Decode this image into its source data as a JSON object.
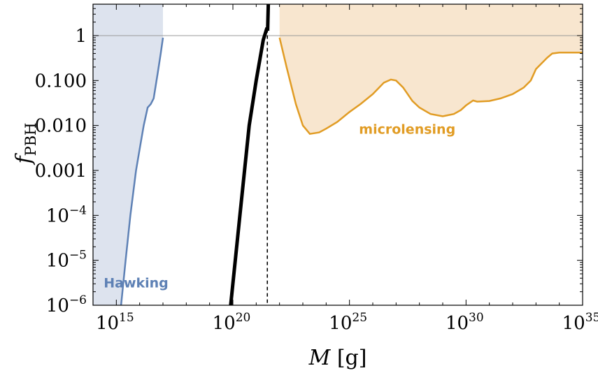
{
  "chart_data": {
    "type": "line",
    "xlabel": {
      "italic": "M",
      "rest": " [g]"
    },
    "ylabel": {
      "italic": "f",
      "sub": "PBH"
    },
    "xscale": "log",
    "yscale": "log",
    "xlim": [
      100000000000000.0,
      1e+35
    ],
    "ylim": [
      1e-06,
      5
    ],
    "x_ticks": [
      {
        "value": 1000000000000000.0,
        "base": "10",
        "exp": "15"
      },
      {
        "value": 1e+20,
        "base": "10",
        "exp": "20"
      },
      {
        "value": 1e+25,
        "base": "10",
        "exp": "25"
      },
      {
        "value": 1e+30,
        "base": "10",
        "exp": "30"
      },
      {
        "value": 1e+35,
        "base": "10",
        "exp": "35"
      }
    ],
    "y_ticks": [
      {
        "value": 1e-06,
        "base": "10",
        "exp": "−6"
      },
      {
        "value": 1e-05,
        "base": "10",
        "exp": "−5"
      },
      {
        "value": 0.0001,
        "base": "10",
        "exp": "−4"
      },
      {
        "value": 0.001,
        "text": "0.001"
      },
      {
        "value": 0.01,
        "text": "0.010"
      },
      {
        "value": 0.1,
        "text": "0.100"
      },
      {
        "value": 1,
        "text": "1"
      }
    ],
    "reference_lines": [
      {
        "orientation": "horizontal",
        "value": 1,
        "color": "#999999",
        "style": "solid"
      },
      {
        "orientation": "vertical",
        "value": 3e+21,
        "color": "#000000",
        "style": "dashed"
      }
    ],
    "colors": {
      "hawking_line": "#5e81b5",
      "hawking_fill": "#dde3ee",
      "microlensing_line": "#e19c24",
      "microlensing_fill": "#f8e6cf",
      "spectrum_line": "#000000"
    },
    "series": [
      {
        "name": "Hawking",
        "role": "constraint",
        "fill": "left",
        "points": [
          [
            1600000000000000.0,
            1e-06
          ],
          [
            2500000000000000.0,
            1e-05
          ],
          [
            4000000000000000.0,
            0.0001
          ],
          [
            7000000000000000.0,
            0.001
          ],
          [
            1e+16,
            0.003
          ],
          [
            1.5e+16,
            0.01
          ],
          [
            2.2e+16,
            0.025
          ],
          [
            3e+16,
            0.03
          ],
          [
            4e+16,
            0.04
          ],
          [
            6e+16,
            0.15
          ],
          [
            8e+16,
            0.4
          ],
          [
            1e+17,
            0.9
          ]
        ]
      },
      {
        "name": "microlensing",
        "role": "constraint",
        "fill": "above",
        "points": [
          [
            1e+22,
            0.9
          ],
          [
            2e+22,
            0.2
          ],
          [
            5e+22,
            0.03
          ],
          [
            1e+23,
            0.01
          ],
          [
            2e+23,
            0.0065
          ],
          [
            5e+23,
            0.007
          ],
          [
            1e+24,
            0.0085
          ],
          [
            3e+24,
            0.012
          ],
          [
            1e+25,
            0.02
          ],
          [
            3e+25,
            0.03
          ],
          [
            1e+26,
            0.05
          ],
          [
            3e+26,
            0.09
          ],
          [
            6e+26,
            0.105
          ],
          [
            1e+27,
            0.1
          ],
          [
            2e+27,
            0.07
          ],
          [
            5e+27,
            0.035
          ],
          [
            1e+28,
            0.025
          ],
          [
            3e+28,
            0.018
          ],
          [
            1e+29,
            0.016
          ],
          [
            3e+29,
            0.018
          ],
          [
            6e+29,
            0.022
          ],
          [
            1e+30,
            0.028
          ],
          [
            2e+30,
            0.036
          ],
          [
            3e+30,
            0.034
          ],
          [
            1e+31,
            0.035
          ],
          [
            3e+31,
            0.04
          ],
          [
            1e+32,
            0.05
          ],
          [
            3e+32,
            0.07
          ],
          [
            6e+32,
            0.1
          ],
          [
            1e+33,
            0.18
          ],
          [
            3e+33,
            0.32
          ],
          [
            5e+33,
            0.4
          ],
          [
            1e+34,
            0.42
          ],
          [
            1e+35,
            0.42
          ]
        ]
      },
      {
        "name": "",
        "role": "spectrum",
        "points": [
          [
            8e+19,
            1e-06
          ],
          [
            2e+20,
            0.0001
          ],
          [
            5e+20,
            0.01
          ],
          [
            1e+21,
            0.1
          ],
          [
            2e+21,
            0.8
          ],
          [
            2.8e+21,
            1.4
          ],
          [
            3.1e+21,
            1.4
          ],
          [
            3.3e+21,
            5
          ]
        ]
      }
    ],
    "annotations": [
      {
        "text": "Hawking",
        "x": 7000000000000000.0,
        "y": 2.5e-06,
        "color": "#5e81b5"
      },
      {
        "text": "microlensing",
        "x": 3e+27,
        "y": 0.0065,
        "color": "#e19c24"
      }
    ],
    "grid": false,
    "legend": "none"
  }
}
